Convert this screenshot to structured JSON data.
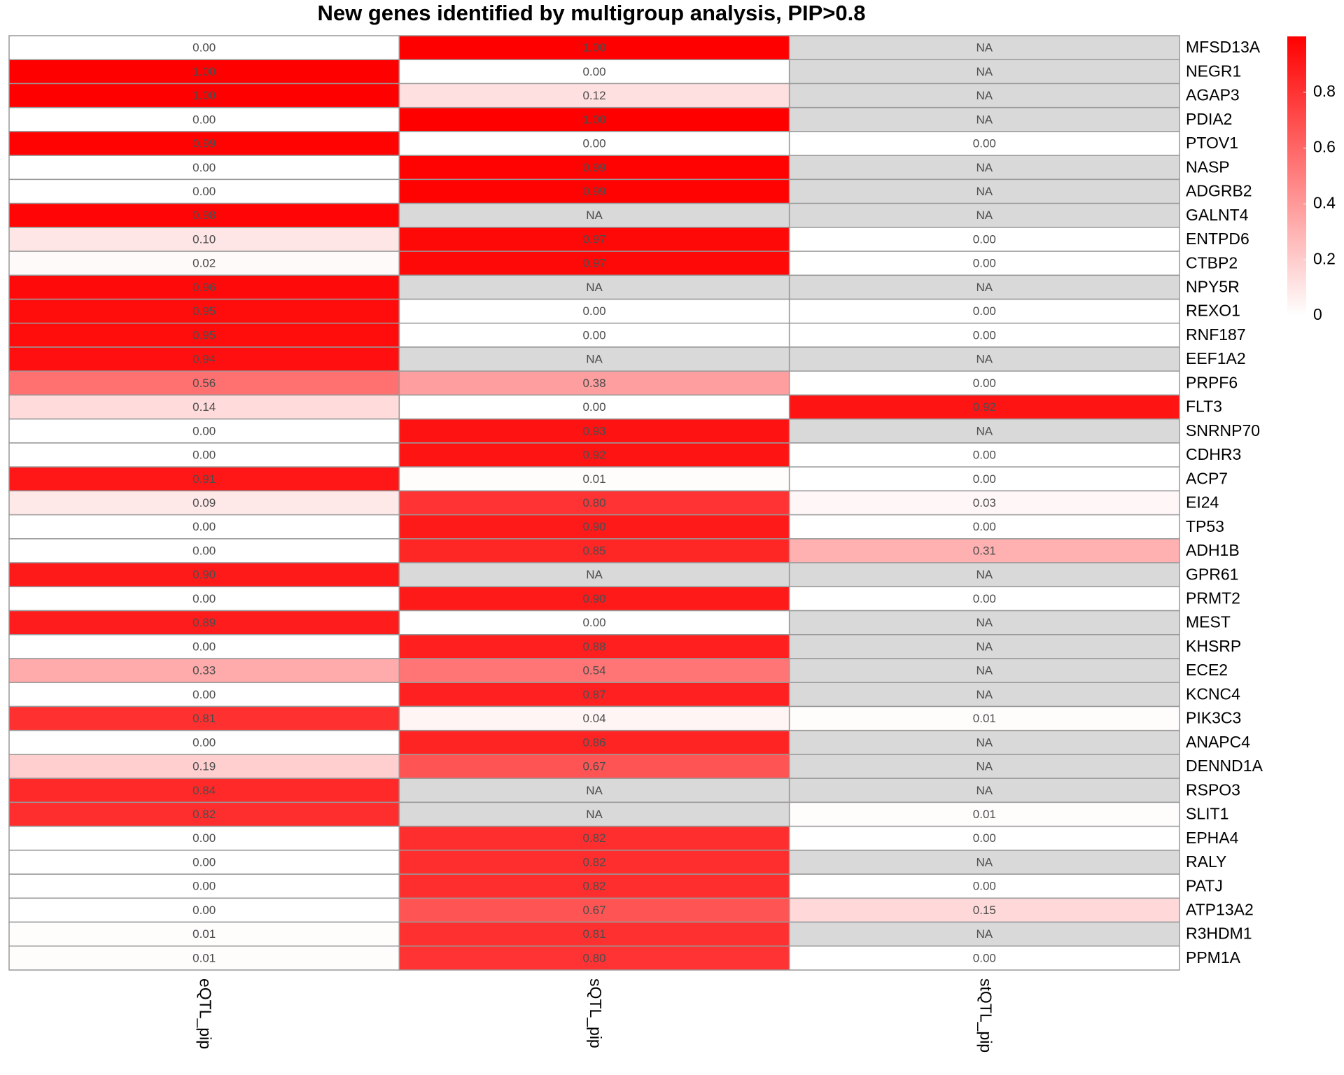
{
  "chart_data": {
    "type": "heatmap",
    "title": "New genes identified by multigroup analysis, PIP>0.8",
    "categories": [
      "MFSD13A",
      "NEGR1",
      "AGAP3",
      "PDIA2",
      "PTOV1",
      "NASP",
      "ADGRB2",
      "GALNT4",
      "ENTPD6",
      "CTBP2",
      "NPY5R",
      "REXO1",
      "RNF187",
      "EEF1A2",
      "PRPF6",
      "FLT3",
      "SNRNP70",
      "CDHR3",
      "ACP7",
      "EI24",
      "TP53",
      "ADH1B",
      "GPR61",
      "PRMT2",
      "MEST",
      "KHSRP",
      "ECE2",
      "KCNC4",
      "PIK3C3",
      "ANAPC4",
      "DENND1A",
      "RSPO3",
      "SLIT1",
      "EPHA4",
      "RALY",
      "PATJ",
      "ATP13A2",
      "R3HDM1",
      "PPM1A"
    ],
    "series": [
      {
        "name": "eQTL_pip",
        "values": [
          0,
          1,
          1,
          0,
          0.99,
          0,
          0,
          0.98,
          0.1,
          0.02,
          0.96,
          0.95,
          0.95,
          0.94,
          0.56,
          0.14,
          0,
          0,
          0.91,
          0.09,
          0,
          0,
          0.9,
          0,
          0.89,
          0,
          0.33,
          0,
          0.81,
          0,
          0.19,
          0.84,
          0.82,
          0,
          0,
          0,
          0,
          0.01,
          0.01
        ],
        "value_labels": [
          "0.00",
          "1.00",
          "1.00",
          "0.00",
          "0.99",
          "0.00",
          "0.00",
          "0.98",
          "0.10",
          "0.02",
          "0.96",
          "0.95",
          "0.95",
          "0.94",
          "0.56",
          "0.14",
          "0.00",
          "0.00",
          "0.91",
          "0.09",
          "0.00",
          "0.00",
          "0.90",
          "0.00",
          "0.89",
          "0.00",
          "0.33",
          "0.00",
          "0.81",
          "0.00",
          "0.19",
          "0.84",
          "0.82",
          "0.00",
          "0.00",
          "0.00",
          "0.00",
          "0.01",
          "0.01"
        ]
      },
      {
        "name": "sQTL_pip",
        "values": [
          1,
          0,
          0.12,
          1,
          0,
          0.99,
          0.99,
          null,
          0.97,
          0.97,
          null,
          0,
          0,
          null,
          0.38,
          0,
          0.93,
          0.92,
          0.01,
          0.8,
          0.9,
          0.85,
          null,
          0.9,
          0,
          0.88,
          0.54,
          0.87,
          0.04,
          0.86,
          0.67,
          null,
          null,
          0.82,
          0.82,
          0.82,
          0.67,
          0.81,
          0.8
        ],
        "value_labels": [
          "1.00",
          "0.00",
          "0.12",
          "1.00",
          "0.00",
          "0.99",
          "0.99",
          "NA",
          "0.97",
          "0.97",
          "NA",
          "0.00",
          "0.00",
          "NA",
          "0.38",
          "0.00",
          "0.93",
          "0.92",
          "0.01",
          "0.80",
          "0.90",
          "0.85",
          "NA",
          "0.90",
          "0.00",
          "0.88",
          "0.54",
          "0.87",
          "0.04",
          "0.86",
          "0.67",
          "NA",
          "NA",
          "0.82",
          "0.82",
          "0.82",
          "0.67",
          "0.81",
          "0.80"
        ]
      },
      {
        "name": "stQTL_pip",
        "values": [
          null,
          null,
          null,
          null,
          0,
          null,
          null,
          null,
          0,
          0,
          null,
          0,
          0,
          null,
          0,
          0.92,
          null,
          0,
          0,
          0.03,
          0,
          0.31,
          null,
          0,
          null,
          null,
          null,
          null,
          0.01,
          null,
          null,
          null,
          0.01,
          0,
          null,
          0,
          0.15,
          null,
          0
        ],
        "value_labels": [
          "NA",
          "NA",
          "NA",
          "NA",
          "0.00",
          "NA",
          "NA",
          "NA",
          "0.00",
          "0.00",
          "NA",
          "0.00",
          "0.00",
          "NA",
          "0.00",
          "0.92",
          "NA",
          "0.00",
          "0.00",
          "0.03",
          "0.00",
          "0.31",
          "NA",
          "0.00",
          "NA",
          "NA",
          "NA",
          "NA",
          "0.01",
          "NA",
          "NA",
          "NA",
          "0.01",
          "0.00",
          "NA",
          "0.00",
          "0.15",
          "NA",
          "0.00"
        ]
      }
    ],
    "colormap": [
      "#ffffff",
      "#ff0000"
    ],
    "na_color": "#d9d9d9",
    "clim": [
      0,
      1
    ],
    "cticks": [
      0,
      0.2,
      0.4,
      0.6,
      0.8
    ]
  }
}
